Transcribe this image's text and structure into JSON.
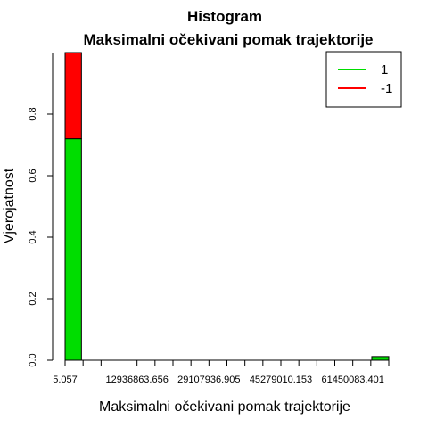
{
  "chart_data": {
    "type": "bar",
    "title": "Histogram",
    "subtitle": "Maksimalni očekivani pomak trajektorije",
    "xlabel": "Maksimalni očekivani pomak trajektorije",
    "ylabel": "Vjerojatnost",
    "xlim": [
      5.057,
      64000000
    ],
    "ylim": [
      0,
      1.0
    ],
    "x_tick_labels": [
      "5.057",
      "12936863.656",
      "29107936.905",
      "45279010.153",
      "61450083.401"
    ],
    "y_tick_labels": [
      "0.0",
      "0.2",
      "0.4",
      "0.6",
      "0.8"
    ],
    "y_ticks": [
      0,
      0.2,
      0.4,
      0.6,
      0.8
    ],
    "series": [
      {
        "name": "1",
        "color": "#00dd00"
      },
      {
        "name": "-1",
        "color": "#ff0000"
      }
    ],
    "bins": [
      {
        "from": 5.057,
        "to": 3234220,
        "series_1": 0.72,
        "series_neg1": 0.28
      },
      {
        "from": 60645000,
        "to": 64000000,
        "series_1": 0.012,
        "series_neg1": 0.0
      }
    ],
    "legend_position": "top-right",
    "grid": false
  }
}
